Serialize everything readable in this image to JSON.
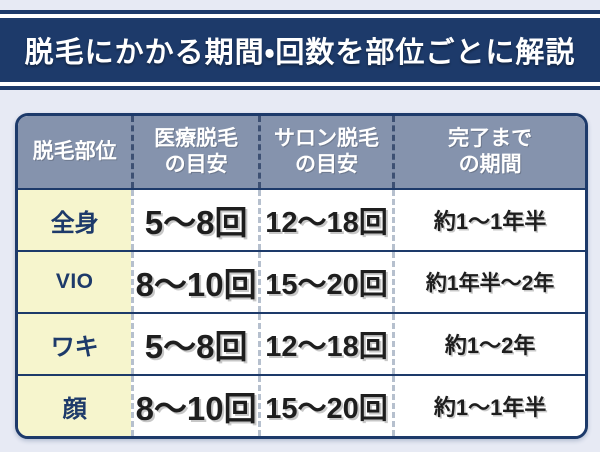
{
  "colors": {
    "background": "#e7eaf4",
    "navy": "#1d3a6a",
    "header_bg": "#8593ad",
    "part_column_bg": "#f6f5cd",
    "body_text": "#1e1e1e",
    "white": "#ffffff"
  },
  "banner": {
    "title": "脱毛にかかる期間・回数を部位ごとに解説"
  },
  "table": {
    "headers": [
      {
        "line1": "脱毛部位",
        "line2": ""
      },
      {
        "line1": "医療脱毛",
        "line2": "の目安"
      },
      {
        "line1": "サロン脱毛",
        "line2": "の目安"
      },
      {
        "line1": "完了まで",
        "line2": "の期間"
      }
    ],
    "rows": [
      {
        "part": "全身",
        "medical": "5〜8回",
        "salon": "12〜18回",
        "duration": "約1〜1年半"
      },
      {
        "part": "VIO",
        "medical": "8〜10回",
        "salon": "15〜20回",
        "duration": "約1年半〜2年"
      },
      {
        "part": "ワキ",
        "medical": "5〜8回",
        "salon": "12〜18回",
        "duration": "約1〜2年"
      },
      {
        "part": "顔",
        "medical": "8〜10回",
        "salon": "15〜20回",
        "duration": "約1〜1年半"
      }
    ]
  }
}
